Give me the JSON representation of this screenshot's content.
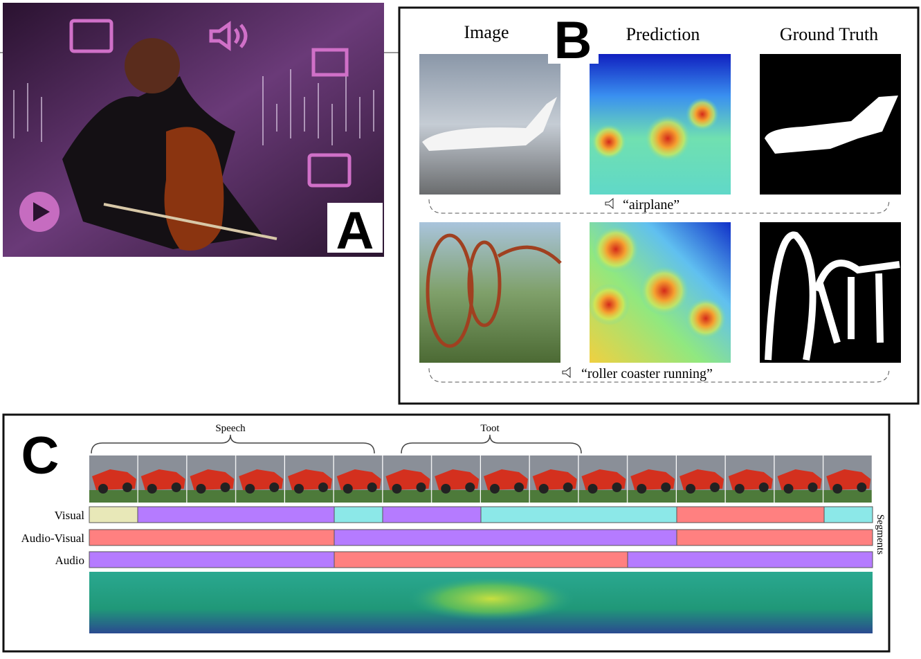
{
  "panel_a": {
    "label": "A"
  },
  "panel_b": {
    "label": "B",
    "columns": [
      "Image",
      "Prediction",
      "Ground Truth"
    ],
    "captions": [
      "“airplane”",
      "“roller coaster running”"
    ]
  },
  "panel_c": {
    "label": "C",
    "brackets": [
      "Speech",
      "Toot"
    ],
    "rows": [
      "Visual",
      "Audio-Visual",
      "Audio"
    ],
    "side_label": "Segments"
  }
}
